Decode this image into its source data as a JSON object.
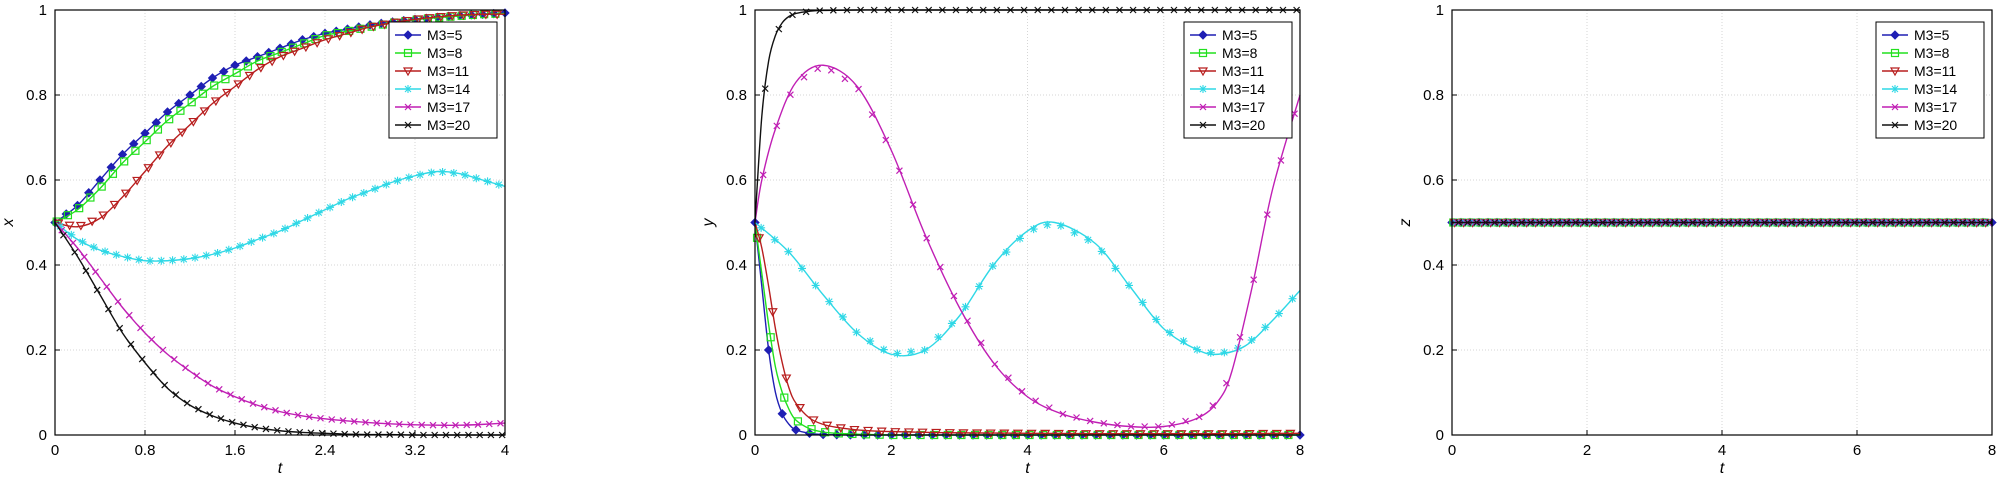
{
  "chart_data": [
    {
      "type": "line",
      "xlabel": "t",
      "ylabel": "x",
      "xlim": [
        0,
        4
      ],
      "ylim": [
        0,
        1
      ],
      "xticks": [
        "0",
        "0.8",
        "1.6",
        "2.4",
        "3.2",
        "4"
      ],
      "yticks": [
        "0",
        "0.2",
        "0.4",
        "0.6",
        "0.8",
        "1"
      ],
      "grid": true,
      "legend_position": "top-right",
      "series": [
        {
          "name": "M3=5",
          "color": "#1f1fb4",
          "marker": "diamond",
          "x": [
            0,
            0.2,
            0.4,
            0.6,
            0.8,
            1.0,
            1.2,
            1.4,
            1.6,
            1.8,
            2.0,
            2.2,
            2.4,
            2.6,
            2.8,
            3.0,
            3.2,
            3.4,
            3.6,
            3.8,
            4.0
          ],
          "y": [
            0.5,
            0.54,
            0.6,
            0.66,
            0.71,
            0.76,
            0.8,
            0.84,
            0.87,
            0.89,
            0.91,
            0.93,
            0.945,
            0.955,
            0.965,
            0.972,
            0.978,
            0.983,
            0.987,
            0.99,
            0.993
          ]
        },
        {
          "name": "M3=8",
          "color": "#22e01e",
          "marker": "square",
          "x": [
            0,
            0.2,
            0.4,
            0.6,
            0.8,
            1.0,
            1.2,
            1.4,
            1.6,
            1.8,
            2.0,
            2.2,
            2.4,
            2.6,
            2.8,
            3.0,
            3.2,
            3.4,
            3.6,
            3.8,
            4.0
          ],
          "y": [
            0.5,
            0.53,
            0.58,
            0.64,
            0.69,
            0.74,
            0.78,
            0.82,
            0.85,
            0.88,
            0.9,
            0.92,
            0.94,
            0.95,
            0.96,
            0.97,
            0.977,
            0.982,
            0.986,
            0.99,
            0.992
          ]
        },
        {
          "name": "M3=11",
          "color": "#b81e1e",
          "marker": "triangle-down",
          "x": [
            0,
            0.2,
            0.4,
            0.6,
            0.8,
            1.0,
            1.2,
            1.4,
            1.6,
            1.8,
            2.0,
            2.2,
            2.4,
            2.6,
            2.8,
            3.0,
            3.2,
            3.4,
            3.6,
            3.8,
            4.0
          ],
          "y": [
            0.5,
            0.49,
            0.51,
            0.56,
            0.62,
            0.68,
            0.73,
            0.78,
            0.82,
            0.86,
            0.89,
            0.91,
            0.93,
            0.945,
            0.96,
            0.97,
            0.978,
            0.984,
            0.988,
            0.99,
            0.99
          ]
        },
        {
          "name": "M3=14",
          "color": "#2fd8e6",
          "marker": "star",
          "x": [
            0,
            0.2,
            0.4,
            0.6,
            0.8,
            1.0,
            1.2,
            1.4,
            1.6,
            1.8,
            2.0,
            2.2,
            2.4,
            2.6,
            2.8,
            3.0,
            3.2,
            3.4,
            3.6,
            3.8,
            4.0
          ],
          "y": [
            0.5,
            0.46,
            0.435,
            0.42,
            0.41,
            0.41,
            0.415,
            0.425,
            0.44,
            0.46,
            0.48,
            0.505,
            0.53,
            0.555,
            0.575,
            0.595,
            0.61,
            0.62,
            0.615,
            0.6,
            0.585
          ]
        },
        {
          "name": "M3=17",
          "color": "#c01fb4",
          "marker": "x",
          "x": [
            0,
            0.2,
            0.4,
            0.6,
            0.8,
            1.0,
            1.2,
            1.4,
            1.6,
            1.8,
            2.0,
            2.2,
            2.4,
            2.6,
            2.8,
            3.0,
            3.2,
            3.4,
            3.6,
            3.8,
            4.0
          ],
          "y": [
            0.5,
            0.44,
            0.37,
            0.3,
            0.24,
            0.19,
            0.15,
            0.115,
            0.09,
            0.07,
            0.055,
            0.045,
            0.038,
            0.033,
            0.029,
            0.026,
            0.024,
            0.023,
            0.023,
            0.025,
            0.028
          ]
        },
        {
          "name": "M3=20",
          "color": "#111111",
          "marker": "x",
          "x": [
            0,
            0.2,
            0.4,
            0.6,
            0.8,
            1.0,
            1.2,
            1.4,
            1.6,
            1.8,
            2.0,
            2.2,
            2.4,
            2.6,
            2.8,
            3.0,
            3.2,
            3.4,
            3.6,
            3.8,
            4.0
          ],
          "y": [
            0.5,
            0.42,
            0.33,
            0.24,
            0.17,
            0.11,
            0.07,
            0.045,
            0.028,
            0.017,
            0.01,
            0.006,
            0.004,
            0.002,
            0.001,
            0.001,
            0,
            0,
            0,
            0,
            0
          ]
        }
      ]
    },
    {
      "type": "line",
      "xlabel": "t",
      "ylabel": "y",
      "xlim": [
        0,
        8
      ],
      "ylim": [
        0,
        1
      ],
      "xticks": [
        "0",
        "2",
        "4",
        "6",
        "8"
      ],
      "yticks": [
        "0",
        "0.2",
        "0.4",
        "0.6",
        "0.8",
        "1"
      ],
      "grid": true,
      "legend_position": "top-right",
      "series": [
        {
          "name": "M3=5",
          "color": "#1f1fb4",
          "marker": "diamond",
          "x": [
            0,
            0.1,
            0.2,
            0.3,
            0.4,
            0.5,
            0.6,
            0.8,
            1.0,
            1.5,
            2,
            3,
            4,
            5,
            6,
            7,
            8
          ],
          "y": [
            0.5,
            0.35,
            0.2,
            0.1,
            0.05,
            0.025,
            0.012,
            0.004,
            0.001,
            0,
            0,
            0,
            0,
            0,
            0,
            0,
            0
          ]
        },
        {
          "name": "M3=8",
          "color": "#22e01e",
          "marker": "square",
          "x": [
            0,
            0.1,
            0.2,
            0.3,
            0.4,
            0.5,
            0.6,
            0.8,
            1.0,
            1.2,
            1.5,
            2,
            3,
            4,
            5,
            6,
            7,
            8
          ],
          "y": [
            0.5,
            0.38,
            0.26,
            0.16,
            0.1,
            0.06,
            0.035,
            0.015,
            0.007,
            0.004,
            0.002,
            0,
            0,
            0,
            0,
            0,
            0,
            0
          ]
        },
        {
          "name": "M3=11",
          "color": "#b81e1e",
          "marker": "triangle-down",
          "x": [
            0,
            0.1,
            0.2,
            0.3,
            0.4,
            0.5,
            0.6,
            0.8,
            1.0,
            1.2,
            1.5,
            2,
            3,
            4,
            5,
            6,
            7,
            8
          ],
          "y": [
            0.5,
            0.44,
            0.35,
            0.25,
            0.17,
            0.11,
            0.075,
            0.04,
            0.025,
            0.018,
            0.012,
            0.008,
            0.005,
            0.004,
            0.003,
            0.003,
            0.003,
            0.004
          ]
        },
        {
          "name": "M3=14",
          "color": "#2fd8e6",
          "marker": "star",
          "x": [
            0,
            0.5,
            1.0,
            1.5,
            2.0,
            2.5,
            3.0,
            3.5,
            4.0,
            4.4,
            5.0,
            5.5,
            6.0,
            6.5,
            6.8,
            7.2,
            7.6,
            8.0
          ],
          "y": [
            0.5,
            0.43,
            0.33,
            0.24,
            0.19,
            0.2,
            0.28,
            0.4,
            0.48,
            0.5,
            0.45,
            0.35,
            0.25,
            0.2,
            0.19,
            0.21,
            0.27,
            0.34
          ]
        },
        {
          "name": "M3=17",
          "color": "#c01fb4",
          "marker": "x",
          "x": [
            0,
            0.1,
            0.3,
            0.6,
            1.0,
            1.5,
            2.0,
            2.5,
            3.0,
            3.5,
            4.0,
            4.5,
            5.0,
            5.5,
            6.0,
            6.5,
            6.8,
            7.0,
            7.3,
            7.6,
            8.0
          ],
          "y": [
            0.5,
            0.6,
            0.72,
            0.83,
            0.87,
            0.82,
            0.67,
            0.47,
            0.3,
            0.17,
            0.09,
            0.05,
            0.03,
            0.02,
            0.02,
            0.04,
            0.08,
            0.15,
            0.35,
            0.58,
            0.8
          ]
        },
        {
          "name": "M3=20",
          "color": "#111111",
          "marker": "x",
          "x": [
            0,
            0.1,
            0.2,
            0.3,
            0.4,
            0.5,
            0.6,
            0.8,
            1.0,
            1.5,
            2,
            3,
            4,
            5,
            6,
            7,
            8
          ],
          "y": [
            0.5,
            0.75,
            0.88,
            0.94,
            0.97,
            0.985,
            0.992,
            0.997,
            0.999,
            1,
            1,
            1,
            1,
            1,
            1,
            1,
            1
          ]
        }
      ]
    },
    {
      "type": "line",
      "xlabel": "t",
      "ylabel": "z",
      "xlim": [
        0,
        8
      ],
      "ylim": [
        0,
        1
      ],
      "xticks": [
        "0",
        "2",
        "4",
        "6",
        "8"
      ],
      "yticks": [
        "0",
        "0.2",
        "0.4",
        "0.6",
        "0.8",
        "1"
      ],
      "grid": true,
      "legend_position": "top-right",
      "series": [
        {
          "name": "M3=5",
          "color": "#1f1fb4",
          "marker": "diamond",
          "x": [
            0,
            8
          ],
          "y": [
            0.5,
            0.5
          ]
        },
        {
          "name": "M3=8",
          "color": "#22e01e",
          "marker": "square",
          "x": [
            0,
            8
          ],
          "y": [
            0.5,
            0.5
          ]
        },
        {
          "name": "M3=11",
          "color": "#b81e1e",
          "marker": "triangle-down",
          "x": [
            0,
            8
          ],
          "y": [
            0.5,
            0.5
          ]
        },
        {
          "name": "M3=14",
          "color": "#2fd8e6",
          "marker": "star",
          "x": [
            0,
            8
          ],
          "y": [
            0.5,
            0.5
          ]
        },
        {
          "name": "M3=17",
          "color": "#c01fb4",
          "marker": "x",
          "x": [
            0,
            8
          ],
          "y": [
            0.5,
            0.5
          ]
        },
        {
          "name": "M3=20",
          "color": "#111111",
          "marker": "x",
          "x": [
            0,
            8
          ],
          "y": [
            0.5,
            0.5
          ]
        }
      ]
    }
  ]
}
